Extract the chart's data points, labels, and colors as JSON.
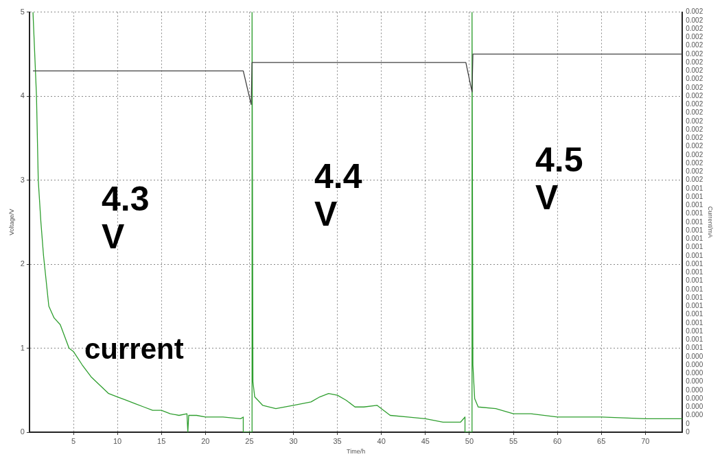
{
  "chart_data": {
    "type": "line",
    "xlabel": "Time/h",
    "ylabel": "Voltage/V",
    "y2label": "Current/mA",
    "xlim": [
      0,
      74.2
    ],
    "xticks": [
      5,
      10,
      15,
      20,
      25,
      30,
      35,
      40,
      45,
      50,
      55,
      60,
      65,
      70
    ],
    "ylim": [
      0,
      5
    ],
    "yticks": [
      0,
      1,
      2,
      3,
      4,
      5
    ],
    "y2lim": [
      0,
      0.0025
    ],
    "y2ticks": [
      {
        "value": 0,
        "label": "0"
      },
      {
        "value": 5e-05,
        "label": "0"
      },
      {
        "value": 0.0001,
        "label": "0.000"
      },
      {
        "value": 0.00015,
        "label": "0.000"
      },
      {
        "value": 0.0002,
        "label": "0.000"
      },
      {
        "value": 0.00025,
        "label": "0.000"
      },
      {
        "value": 0.0003,
        "label": "0.000"
      },
      {
        "value": 0.00035,
        "label": "0.000"
      },
      {
        "value": 0.0004,
        "label": "0.000"
      },
      {
        "value": 0.00045,
        "label": "0.000"
      },
      {
        "value": 0.0005,
        "label": "0.001"
      },
      {
        "value": 0.00055,
        "label": "0.001"
      },
      {
        "value": 0.0006,
        "label": "0.001"
      },
      {
        "value": 0.00065,
        "label": "0.001"
      },
      {
        "value": 0.0007,
        "label": "0.001"
      },
      {
        "value": 0.00075,
        "label": "0.001"
      },
      {
        "value": 0.0008,
        "label": "0.001"
      },
      {
        "value": 0.00085,
        "label": "0.001"
      },
      {
        "value": 0.0009,
        "label": "0.001"
      },
      {
        "value": 0.00095,
        "label": "0.001"
      },
      {
        "value": 0.001,
        "label": "0.001"
      },
      {
        "value": 0.00105,
        "label": "0.001"
      },
      {
        "value": 0.0011,
        "label": "0.001"
      },
      {
        "value": 0.00115,
        "label": "0.001"
      },
      {
        "value": 0.0012,
        "label": "0.001"
      },
      {
        "value": 0.00125,
        "label": "0.001"
      },
      {
        "value": 0.0013,
        "label": "0.001"
      },
      {
        "value": 0.00135,
        "label": "0.001"
      },
      {
        "value": 0.0014,
        "label": "0.001"
      },
      {
        "value": 0.00145,
        "label": "0.001"
      },
      {
        "value": 0.0015,
        "label": "0.002"
      },
      {
        "value": 0.00155,
        "label": "0.002"
      },
      {
        "value": 0.0016,
        "label": "0.002"
      },
      {
        "value": 0.00165,
        "label": "0.002"
      },
      {
        "value": 0.0017,
        "label": "0.002"
      },
      {
        "value": 0.00175,
        "label": "0.002"
      },
      {
        "value": 0.0018,
        "label": "0.002"
      },
      {
        "value": 0.00185,
        "label": "0.002"
      },
      {
        "value": 0.0019,
        "label": "0.002"
      },
      {
        "value": 0.00195,
        "label": "0.002"
      },
      {
        "value": 0.002,
        "label": "0.002"
      },
      {
        "value": 0.00205,
        "label": "0.002"
      },
      {
        "value": 0.0021,
        "label": "0.002"
      },
      {
        "value": 0.00215,
        "label": "0.002"
      },
      {
        "value": 0.0022,
        "label": "0.002"
      },
      {
        "value": 0.00225,
        "label": "0.002"
      },
      {
        "value": 0.0023,
        "label": "0.002"
      },
      {
        "value": 0.00235,
        "label": "0.002"
      },
      {
        "value": 0.0024,
        "label": "0.002"
      },
      {
        "value": 0.00245,
        "label": "0.002"
      },
      {
        "value": 0.0025,
        "label": "0.002"
      }
    ],
    "grid": true,
    "legend": false,
    "marker": "none",
    "line_style": "solid",
    "annotations": [
      "4.3 V",
      "4.4 V",
      "4.5 V",
      "current"
    ],
    "series": [
      {
        "color": "#404040",
        "x": [
          0.4,
          24.3,
          25.2,
          25.3,
          49.6,
          50.3,
          50.4,
          74.2
        ],
        "values": [
          4.3,
          4.3,
          3.9,
          4.4,
          4.4,
          4.05,
          4.5,
          4.5
        ]
      },
      {
        "color": "#2e9e2e",
        "axis": "y2",
        "x": [
          0.4,
          0.8,
          1.0,
          1.3,
          1.6,
          2.2,
          2.8,
          3.5,
          4.5,
          5,
          6,
          7,
          8,
          9,
          10,
          11,
          12,
          13,
          14,
          15,
          16,
          17,
          17.9,
          18,
          18.1,
          19,
          20,
          22,
          24,
          24.3,
          24.3,
          25.3,
          25.3,
          25.4,
          25.6,
          26.5,
          28,
          30,
          32,
          33,
          34,
          35,
          36,
          37,
          38,
          39.5,
          40,
          41,
          43,
          45,
          47,
          49,
          49.5,
          49.5,
          50.3,
          50.3,
          50.4,
          50.6,
          51,
          53,
          55,
          57,
          60,
          65,
          70,
          74.2
        ],
        "values": [
          0.0025,
          0.002,
          0.0015,
          0.00125,
          0.00105,
          0.00075,
          0.00068,
          0.00064,
          0.0005,
          0.00048,
          0.0004,
          0.00033,
          0.00028,
          0.00023,
          0.00021,
          0.00019,
          0.00017,
          0.00015,
          0.00013,
          0.00013,
          0.00011,
          0.0001,
          0.00011,
          0,
          0.0001,
          0.0001,
          9e-05,
          9e-05,
          8e-05,
          9e-05,
          0,
          0,
          0.0025,
          0.0003,
          0.00021,
          0.00016,
          0.00014,
          0.00016,
          0.00018,
          0.00021,
          0.00023,
          0.00022,
          0.00019,
          0.00015,
          0.00015,
          0.00016,
          0.00014,
          0.0001,
          9e-05,
          8e-05,
          6e-05,
          6e-05,
          9e-05,
          0,
          0,
          0.0025,
          0.0004,
          0.0002,
          0.00015,
          0.00014,
          0.00011,
          0.00011,
          9e-05,
          9e-05,
          8e-05,
          8e-05
        ]
      }
    ]
  }
}
